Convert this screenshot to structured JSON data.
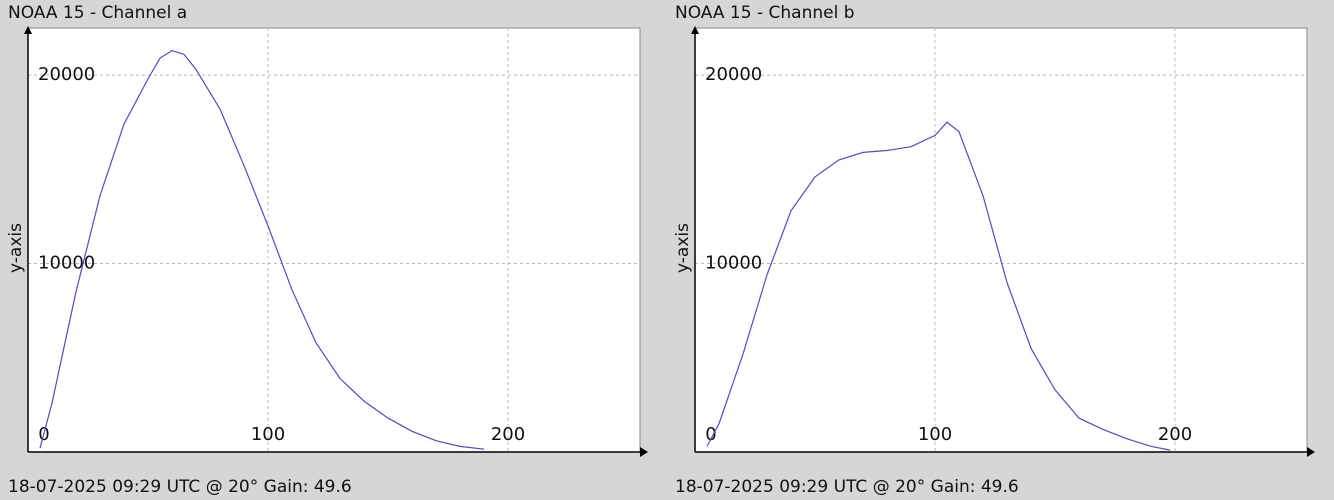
{
  "chart_data": [
    {
      "type": "line",
      "title": "NOAA 15 - Channel a",
      "y_label": "y-axis",
      "footer": "18-07-2025 09:29 UTC @ 20° Gain: 49.6",
      "xlim": [
        0,
        255
      ],
      "ylim": [
        0,
        22500
      ],
      "xticks": [
        0,
        100,
        200
      ],
      "yticks": [
        10000,
        20000
      ],
      "grid": true,
      "series": [
        {
          "color": "#4b4bd0",
          "x": [
            5,
            10,
            20,
            30,
            40,
            50,
            55,
            60,
            65,
            70,
            80,
            90,
            100,
            110,
            120,
            130,
            140,
            150,
            160,
            170,
            180,
            190
          ],
          "values": [
            200,
            2600,
            8500,
            13600,
            17400,
            19800,
            20900,
            21300,
            21100,
            20300,
            18200,
            15200,
            12000,
            8600,
            5800,
            3900,
            2700,
            1800,
            1100,
            600,
            300,
            150
          ]
        }
      ]
    },
    {
      "type": "line",
      "title": "NOAA 15 - Channel b",
      "y_label": "y-axis",
      "footer": "18-07-2025 09:29 UTC @ 20° Gain: 49.6",
      "xlim": [
        0,
        255
      ],
      "ylim": [
        0,
        22500
      ],
      "xticks": [
        0,
        100,
        200
      ],
      "yticks": [
        10000,
        20000
      ],
      "grid": true,
      "series": [
        {
          "color": "#4b4bd0",
          "x": [
            5,
            10,
            20,
            30,
            40,
            50,
            60,
            70,
            80,
            90,
            100,
            105,
            110,
            120,
            130,
            140,
            150,
            160,
            170,
            180,
            190,
            198
          ],
          "values": [
            300,
            1500,
            5200,
            9400,
            12800,
            14600,
            15500,
            15900,
            16000,
            16200,
            16800,
            17500,
            17000,
            13600,
            9000,
            5500,
            3300,
            1800,
            1200,
            700,
            300,
            100
          ]
        }
      ]
    }
  ]
}
